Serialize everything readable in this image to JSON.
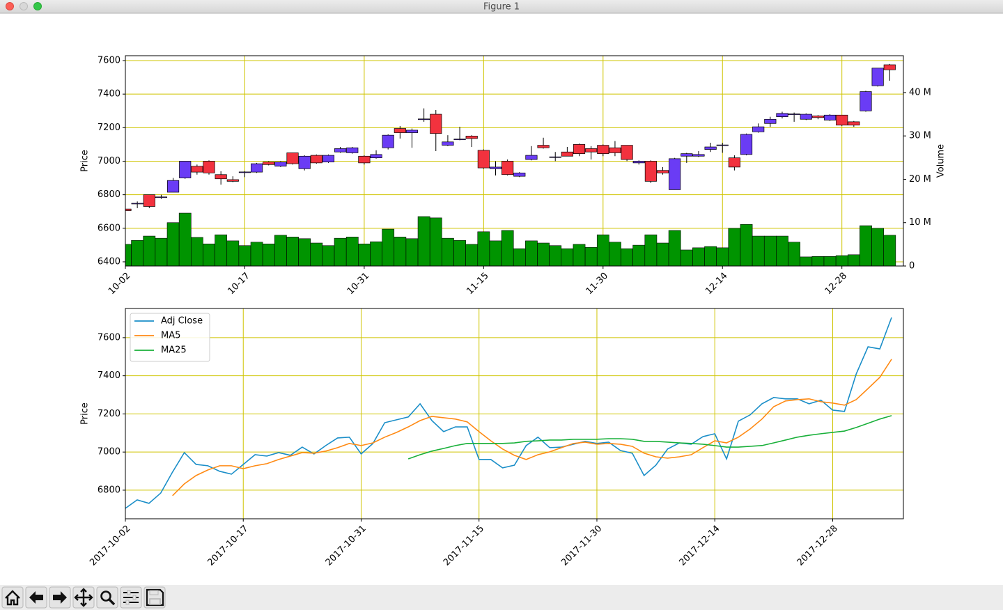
{
  "window": {
    "title": "Figure 1"
  },
  "chart_data": [
    {
      "type": "candlestick",
      "categories": [
        "10-02",
        null,
        null,
        null,
        null,
        null,
        null,
        null,
        null,
        null,
        "10-17",
        null,
        null,
        null,
        null,
        null,
        null,
        null,
        null,
        null,
        "10-31",
        null,
        null,
        null,
        null,
        null,
        null,
        null,
        null,
        null,
        "11-15",
        null,
        null,
        null,
        null,
        null,
        null,
        null,
        null,
        null,
        "11-30",
        null,
        null,
        null,
        null,
        null,
        null,
        null,
        null,
        null,
        "12-14",
        null,
        null,
        null,
        null,
        null,
        null,
        null,
        null,
        null,
        "12-28",
        null,
        null,
        null,
        null
      ],
      "open": [
        6715,
        6745,
        6800,
        6785,
        6815,
        6900,
        6970,
        7000,
        6920,
        6890,
        6935,
        6935,
        6995,
        6970,
        7050,
        6955,
        7035,
        6995,
        7055,
        7050,
        7030,
        7020,
        7080,
        7195,
        7170,
        7250,
        7280,
        7095,
        7130,
        7150,
        7065,
        6955,
        7000,
        6910,
        7010,
        7095,
        7025,
        7055,
        7100,
        7075,
        7095,
        7080,
        7095,
        6990,
        7000,
        6945,
        6830,
        7030,
        7030,
        7070,
        7095,
        7020,
        7040,
        7175,
        7225,
        7265,
        7280,
        7250,
        7270,
        7245,
        7275,
        7235,
        7300,
        7450,
        7575
      ],
      "high": [
        6720,
        6760,
        6800,
        6800,
        6900,
        7000,
        6980,
        7005,
        6940,
        6910,
        6940,
        6990,
        7000,
        7000,
        7050,
        7035,
        7040,
        7040,
        7085,
        7085,
        7035,
        7065,
        7160,
        7210,
        7195,
        7315,
        7305,
        7155,
        7205,
        7155,
        7070,
        7000,
        7010,
        6935,
        7090,
        7140,
        7055,
        7085,
        7105,
        7090,
        7100,
        7120,
        7095,
        7005,
        7005,
        6965,
        7020,
        7050,
        7060,
        7110,
        7110,
        7035,
        7165,
        7225,
        7265,
        7295,
        7290,
        7285,
        7275,
        7280,
        7275,
        7240,
        7420,
        7555,
        7580
      ],
      "low": [
        6700,
        6720,
        6720,
        6775,
        6815,
        6895,
        6920,
        6920,
        6860,
        6875,
        6905,
        6930,
        6975,
        6965,
        6980,
        6945,
        6985,
        6990,
        7050,
        7045,
        6980,
        7015,
        7070,
        7135,
        7080,
        7235,
        7060,
        7090,
        7125,
        7085,
        6955,
        6915,
        6915,
        6905,
        7005,
        7075,
        7000,
        7030,
        7030,
        7010,
        7030,
        7030,
        7000,
        6980,
        6870,
        6920,
        6830,
        6990,
        7025,
        7055,
        7050,
        6945,
        7035,
        7170,
        7205,
        7255,
        7235,
        7245,
        7250,
        7240,
        7210,
        7205,
        7295,
        7445,
        7480
      ],
      "close": [
        6705,
        6749,
        6730,
        6787,
        6885,
        7000,
        6935,
        6930,
        6895,
        6880,
        6936,
        6985,
        6980,
        6995,
        6985,
        7030,
        6990,
        7035,
        7075,
        7080,
        6990,
        7040,
        7155,
        7170,
        7185,
        7252,
        7165,
        7115,
        7132,
        7135,
        6960,
        6965,
        6920,
        6930,
        7035,
        7080,
        7026,
        7030,
        7045,
        7055,
        7045,
        7050,
        7010,
        7000,
        6880,
        6930,
        7015,
        7045,
        7040,
        7085,
        7097,
        6965,
        7160,
        7205,
        7250,
        7285,
        7282,
        7280,
        7260,
        7275,
        7215,
        7215,
        7415,
        7555,
        7545
      ],
      "volume": [
        5000000,
        5900000,
        6900000,
        6400000,
        10000000,
        12200000,
        6600000,
        5100000,
        7200000,
        5800000,
        4700000,
        5500000,
        5100000,
        7100000,
        6700000,
        6300000,
        5300000,
        4700000,
        6400000,
        6700000,
        5100000,
        5600000,
        8500000,
        6700000,
        6300000,
        11400000,
        11100000,
        6400000,
        5900000,
        5000000,
        7900000,
        5800000,
        8200000,
        4000000,
        5800000,
        5300000,
        4700000,
        4000000,
        5000000,
        4300000,
        7200000,
        5500000,
        4000000,
        4800000,
        7200000,
        5300000,
        8200000,
        3700000,
        4200000,
        4500000,
        4200000,
        8700000,
        9600000,
        6900000,
        6900000,
        6900000,
        5500000,
        2100000,
        2200000,
        2200000,
        2400000,
        2600000,
        9300000,
        8700000,
        7100000
      ],
      "up_color": "#6a3cf5",
      "down_color": "#f2323e",
      "volume_color": "#009400",
      "ylabel": "Price",
      "y2label": "Volume",
      "ylim": [
        6375,
        7629
      ],
      "yticks": [
        6400,
        6600,
        6800,
        7000,
        7200,
        7400,
        7600
      ],
      "y2lim": [
        0,
        48500000
      ],
      "y2ticks": [
        0,
        {
          "value": 10000000,
          "label": "10 M"
        },
        {
          "value": 20000000,
          "label": "20 M"
        },
        {
          "value": 30000000,
          "label": "30 M"
        },
        {
          "value": 40000000,
          "label": "40 M"
        }
      ],
      "grid": true,
      "grid_color": "#cfc400"
    },
    {
      "type": "line",
      "categories": [
        "2017-10-02",
        null,
        null,
        null,
        null,
        null,
        null,
        null,
        null,
        null,
        "2017-10-17",
        null,
        null,
        null,
        null,
        null,
        null,
        null,
        null,
        null,
        "2017-10-31",
        null,
        null,
        null,
        null,
        null,
        null,
        null,
        null,
        null,
        "2017-11-15",
        null,
        null,
        null,
        null,
        null,
        null,
        null,
        null,
        null,
        "2017-11-30",
        null,
        null,
        null,
        null,
        null,
        null,
        null,
        null,
        null,
        "2017-12-14",
        null,
        null,
        null,
        null,
        null,
        null,
        null,
        null,
        null,
        "2017-12-28",
        null,
        null,
        null,
        null,
        null
      ],
      "ylabel": "Price",
      "ylim": [
        6650,
        7753
      ],
      "yticks": [
        6800,
        7000,
        7200,
        7400,
        7600
      ],
      "grid": true,
      "grid_color": "#cfc400",
      "legend": "upper left",
      "series": [
        {
          "name": "Adj Close",
          "color": "#1a8ec8",
          "values": [
            6705,
            6749,
            6731,
            6785,
            6895,
            6997,
            6935,
            6928,
            6899,
            6884,
            6935,
            6986,
            6979,
            6997,
            6983,
            7026,
            6990,
            7034,
            7074,
            7078,
            6990,
            7045,
            7154,
            7169,
            7184,
            7253,
            7165,
            7107,
            7132,
            7132,
            6961,
            6961,
            6917,
            6931,
            7034,
            7078,
            7023,
            7026,
            7041,
            7056,
            7045,
            7052,
            7008,
            6994,
            6877,
            6931,
            7016,
            7048,
            7041,
            7081,
            7096,
            6964,
            7162,
            7195,
            7253,
            7286,
            7279,
            7279,
            7253,
            7272,
            7220,
            7213,
            7410,
            7552,
            7541,
            7706
          ]
        },
        {
          "name": "MA5",
          "color": "#ff8a14",
          "values": [
            null,
            null,
            null,
            null,
            6771,
            6833,
            6877,
            6906,
            6928,
            6928,
            6913,
            6928,
            6939,
            6961,
            6979,
            6997,
            6994,
            7005,
            7023,
            7045,
            7034,
            7048,
            7078,
            7103,
            7132,
            7165,
            7187,
            7180,
            7173,
            7158,
            7107,
            7059,
            7016,
            6983,
            6961,
            6986,
            7001,
            7023,
            7045,
            7052,
            7041,
            7045,
            7041,
            7030,
            6994,
            6975,
            6968,
            6975,
            6986,
            7023,
            7059,
            7048,
            7078,
            7121,
            7173,
            7238,
            7268,
            7275,
            7279,
            7264,
            7257,
            7246,
            7275,
            7333,
            7392,
            7487
          ]
        },
        {
          "name": "MA25",
          "color": "#19b03a",
          "values": [
            null,
            null,
            null,
            null,
            null,
            null,
            null,
            null,
            null,
            null,
            null,
            null,
            null,
            null,
            null,
            null,
            null,
            null,
            null,
            null,
            null,
            null,
            null,
            null,
            6964,
            6986,
            7005,
            7019,
            7034,
            7045,
            7045,
            7045,
            7045,
            7048,
            7056,
            7059,
            7063,
            7063,
            7067,
            7067,
            7067,
            7070,
            7070,
            7067,
            7056,
            7056,
            7052,
            7048,
            7045,
            7041,
            7034,
            7026,
            7026,
            7030,
            7034,
            7048,
            7063,
            7078,
            7088,
            7096,
            7103,
            7110,
            7129,
            7151,
            7173,
            7191
          ]
        }
      ]
    }
  ]
}
